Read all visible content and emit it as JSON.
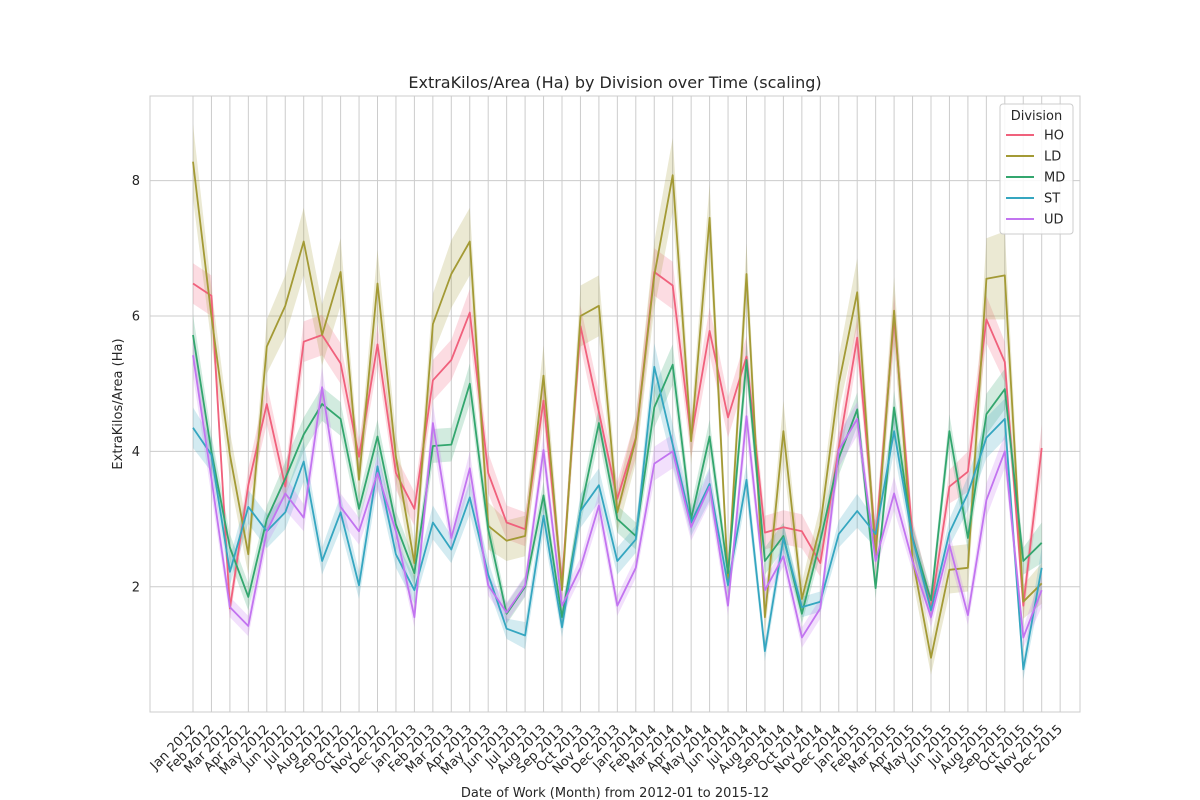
{
  "chart_data": {
    "type": "line",
    "title": "ExtraKilos/Area (Ha) by Division over Time (scaling)",
    "xlabel": "Date of Work (Month) from 2012-01 to 2015-12",
    "ylabel": "ExtraKilos/Area (Ha)",
    "ylim": [
      0.15,
      9.25
    ],
    "yticks": [
      2,
      4,
      6,
      8
    ],
    "grid": true,
    "legend": {
      "title": "Division",
      "placement": "top-right"
    },
    "categories": [
      "Jan 2012",
      "Feb 2012",
      "Mar 2012",
      "Apr 2012",
      "May 2012",
      "Jun 2012",
      "Jul 2012",
      "Aug 2012",
      "Sep 2012",
      "Oct 2012",
      "Nov 2012",
      "Dec 2012",
      "Jan 2013",
      "Feb 2013",
      "Mar 2013",
      "Apr 2013",
      "May 2013",
      "Jun 2013",
      "Jul 2013",
      "Aug 2013",
      "Sep 2013",
      "Oct 2013",
      "Nov 2013",
      "Dec 2013",
      "Jan 2014",
      "Feb 2014",
      "Mar 2014",
      "Apr 2014",
      "May 2014",
      "Jun 2014",
      "Jul 2014",
      "Aug 2014",
      "Sep 2014",
      "Oct 2014",
      "Nov 2014",
      "Dec 2014",
      "Jan 2015",
      "Feb 2015",
      "Mar 2015",
      "Apr 2015",
      "May 2015",
      "Jun 2015",
      "Jul 2015",
      "Aug 2015",
      "Sep 2015",
      "Oct 2015",
      "Nov 2015",
      "Dec 2015"
    ],
    "series": [
      {
        "name": "HO",
        "color": "#f0617c",
        "values": [
          6.48,
          6.3,
          1.68,
          3.5,
          4.7,
          3.48,
          5.62,
          5.72,
          5.3,
          3.92,
          5.58,
          3.68,
          3.15,
          5.05,
          5.35,
          6.05,
          3.68,
          2.95,
          2.85,
          4.75,
          2.05,
          5.85,
          4.58,
          3.3,
          4.2,
          6.65,
          6.45,
          4.2,
          5.78,
          4.5,
          5.4,
          2.8,
          2.88,
          2.82,
          2.35,
          4.05,
          5.68,
          2.68,
          5.98,
          2.75,
          1.68,
          3.48,
          3.7,
          5.95,
          5.32,
          1.72,
          4.05,
          null
        ],
        "band": [
          0.3,
          0.3,
          0.15,
          0.25,
          0.3,
          0.25,
          0.3,
          0.3,
          0.3,
          0.25,
          0.3,
          0.25,
          0.25,
          0.3,
          0.3,
          0.35,
          0.3,
          0.25,
          0.25,
          0.3,
          0.2,
          0.3,
          0.3,
          0.25,
          0.3,
          0.35,
          0.35,
          0.3,
          0.35,
          0.3,
          0.3,
          0.25,
          0.25,
          0.25,
          0.2,
          0.3,
          0.3,
          0.25,
          0.35,
          0.25,
          0.2,
          0.25,
          0.3,
          0.35,
          0.3,
          0.2,
          0.35,
          null
        ]
      },
      {
        "name": "LD",
        "color": "#a39a35",
        "values": [
          8.28,
          6.0,
          3.95,
          2.48,
          5.55,
          6.15,
          7.1,
          5.72,
          6.65,
          3.58,
          6.48,
          3.92,
          2.35,
          5.88,
          6.62,
          7.1,
          2.9,
          2.68,
          2.75,
          5.12,
          1.95,
          6.0,
          6.15,
          3.1,
          4.18,
          6.6,
          8.08,
          4.15,
          7.45,
          2.1,
          6.62,
          1.55,
          4.3,
          1.82,
          2.9,
          5.0,
          6.35,
          2.45,
          6.08,
          2.42,
          0.95,
          2.25,
          2.28,
          6.55,
          6.6,
          1.78,
          2.05,
          null
        ],
        "band": [
          0.55,
          0.4,
          0.35,
          0.3,
          0.4,
          0.45,
          0.5,
          0.45,
          0.5,
          0.3,
          0.5,
          0.35,
          0.3,
          0.45,
          0.5,
          0.5,
          0.35,
          0.3,
          0.3,
          0.45,
          0.25,
          0.45,
          0.45,
          0.3,
          0.35,
          0.5,
          0.55,
          0.35,
          0.5,
          0.25,
          0.45,
          0.25,
          0.45,
          0.25,
          0.3,
          0.4,
          0.5,
          0.3,
          0.5,
          0.3,
          0.25,
          0.35,
          0.35,
          0.6,
          0.65,
          0.25,
          0.3,
          null
        ]
      },
      {
        "name": "MD",
        "color": "#33a66e",
        "values": [
          5.72,
          4.0,
          2.58,
          1.85,
          3.0,
          3.6,
          4.25,
          4.7,
          4.48,
          3.15,
          4.22,
          2.92,
          2.2,
          4.08,
          4.1,
          5.0,
          2.85,
          1.6,
          2.0,
          3.35,
          1.55,
          3.12,
          4.42,
          3.0,
          2.75,
          4.65,
          5.28,
          3.0,
          4.22,
          2.2,
          5.35,
          2.38,
          2.75,
          1.6,
          2.68,
          3.9,
          4.62,
          1.98,
          4.65,
          2.72,
          1.8,
          4.3,
          2.72,
          4.55,
          4.92,
          2.38,
          2.65,
          null
        ],
        "band": [
          0.3,
          0.25,
          0.2,
          0.2,
          0.2,
          0.25,
          0.25,
          0.25,
          0.25,
          0.2,
          0.25,
          0.2,
          0.2,
          0.25,
          0.25,
          0.3,
          0.2,
          0.15,
          0.15,
          0.2,
          0.15,
          0.2,
          0.25,
          0.2,
          0.2,
          0.3,
          0.3,
          0.2,
          0.25,
          0.15,
          0.3,
          0.2,
          0.2,
          0.15,
          0.2,
          0.25,
          0.25,
          0.15,
          0.25,
          0.2,
          0.15,
          0.25,
          0.2,
          0.3,
          0.3,
          0.2,
          0.3,
          null
        ]
      },
      {
        "name": "ST",
        "color": "#35a6c0",
        "values": [
          4.35,
          3.95,
          2.22,
          3.18,
          2.82,
          3.1,
          3.85,
          2.38,
          3.1,
          2.02,
          3.78,
          2.48,
          1.95,
          2.95,
          2.55,
          3.32,
          2.18,
          1.38,
          1.28,
          3.05,
          1.4,
          3.12,
          3.5,
          2.38,
          2.7,
          5.25,
          4.1,
          2.95,
          3.52,
          2.02,
          3.58,
          1.05,
          2.72,
          1.7,
          1.78,
          2.78,
          3.12,
          2.78,
          4.3,
          2.72,
          1.65,
          2.8,
          3.38,
          4.2,
          4.48,
          0.78,
          2.28,
          null
        ],
        "band": [
          0.3,
          0.25,
          0.2,
          0.25,
          0.25,
          0.25,
          0.3,
          0.2,
          0.25,
          0.2,
          0.3,
          0.2,
          0.2,
          0.25,
          0.2,
          0.25,
          0.2,
          0.15,
          0.2,
          0.25,
          0.15,
          0.25,
          0.25,
          0.2,
          0.2,
          0.35,
          0.3,
          0.2,
          0.25,
          0.15,
          0.25,
          0.15,
          0.2,
          0.15,
          0.15,
          0.2,
          0.25,
          0.2,
          0.3,
          0.2,
          0.15,
          0.2,
          0.25,
          0.3,
          0.3,
          0.15,
          0.3,
          null
        ]
      },
      {
        "name": "UD",
        "color": "#c274f0",
        "values": [
          5.42,
          3.6,
          1.7,
          1.42,
          2.82,
          3.38,
          3.02,
          4.95,
          3.18,
          2.82,
          3.68,
          2.82,
          1.55,
          4.42,
          2.72,
          3.75,
          2.02,
          1.62,
          2.02,
          4.02,
          1.72,
          2.28,
          3.2,
          1.72,
          2.28,
          3.82,
          4.0,
          2.88,
          3.48,
          1.72,
          4.52,
          1.95,
          2.45,
          1.25,
          1.68,
          4.02,
          4.48,
          2.38,
          3.38,
          2.38,
          1.55,
          2.62,
          1.58,
          3.28,
          4.0,
          1.25,
          1.95,
          null
        ],
        "band": [
          0.3,
          0.25,
          0.15,
          0.15,
          0.2,
          0.25,
          0.2,
          0.3,
          0.2,
          0.2,
          0.25,
          0.2,
          0.15,
          0.3,
          0.2,
          0.25,
          0.15,
          0.15,
          0.15,
          0.25,
          0.15,
          0.15,
          0.2,
          0.15,
          0.15,
          0.25,
          0.25,
          0.2,
          0.25,
          0.15,
          0.3,
          0.15,
          0.15,
          0.15,
          0.15,
          0.25,
          0.25,
          0.15,
          0.25,
          0.15,
          0.15,
          0.2,
          0.15,
          0.25,
          0.25,
          0.15,
          0.25,
          null
        ]
      }
    ]
  }
}
